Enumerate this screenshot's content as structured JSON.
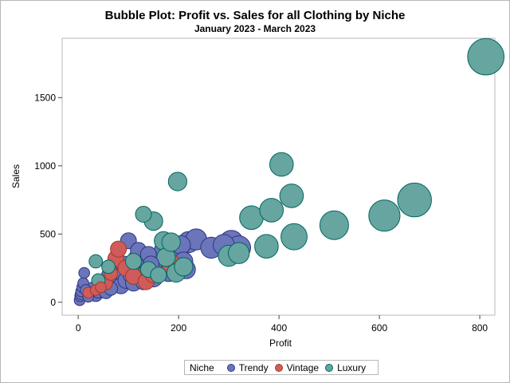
{
  "chart_data": {
    "type": "scatter",
    "title": "Bubble Plot: Profit vs. Sales for all Clothing by Niche",
    "subtitle": "January 2023 - March 2023",
    "xlabel": "Profit",
    "ylabel": "Sales",
    "xlim": [
      -32,
      830
    ],
    "ylim": [
      -95,
      1935
    ],
    "xticks": [
      0,
      200,
      400,
      600,
      800
    ],
    "yticks": [
      0,
      500,
      1000,
      1500
    ],
    "grid": false,
    "legend": {
      "title": "Niche",
      "position": "bottom"
    },
    "series": [
      {
        "name": "Trendy",
        "color": "#6b75b9",
        "edge": "#2d3584",
        "points": [
          {
            "x": 3,
            "y": 15,
            "size": 3
          },
          {
            "x": 4,
            "y": 45,
            "size": 3
          },
          {
            "x": 5,
            "y": 60,
            "size": 3
          },
          {
            "x": 6,
            "y": 80,
            "size": 3
          },
          {
            "x": 8,
            "y": 110,
            "size": 3
          },
          {
            "x": 10,
            "y": 140,
            "size": 3
          },
          {
            "x": 12,
            "y": 215,
            "size": 3
          },
          {
            "x": 15,
            "y": 90,
            "size": 3
          },
          {
            "x": 20,
            "y": 40,
            "size": 3
          },
          {
            "x": 25,
            "y": 60,
            "size": 4
          },
          {
            "x": 30,
            "y": 100,
            "size": 4
          },
          {
            "x": 35,
            "y": 55,
            "size": 4
          },
          {
            "x": 40,
            "y": 80,
            "size": 4
          },
          {
            "x": 45,
            "y": 120,
            "size": 4
          },
          {
            "x": 50,
            "y": 150,
            "size": 4
          },
          {
            "x": 55,
            "y": 75,
            "size": 4
          },
          {
            "x": 60,
            "y": 200,
            "size": 4
          },
          {
            "x": 65,
            "y": 100,
            "size": 4
          },
          {
            "x": 70,
            "y": 130,
            "size": 5
          },
          {
            "x": 75,
            "y": 170,
            "size": 5
          },
          {
            "x": 80,
            "y": 230,
            "size": 5
          },
          {
            "x": 85,
            "y": 120,
            "size": 5
          },
          {
            "x": 90,
            "y": 280,
            "size": 5
          },
          {
            "x": 95,
            "y": 160,
            "size": 5
          },
          {
            "x": 100,
            "y": 450,
            "size": 5
          },
          {
            "x": 105,
            "y": 200,
            "size": 5
          },
          {
            "x": 110,
            "y": 140,
            "size": 5
          },
          {
            "x": 115,
            "y": 320,
            "size": 5
          },
          {
            "x": 120,
            "y": 380,
            "size": 5
          },
          {
            "x": 125,
            "y": 250,
            "size": 5
          },
          {
            "x": 130,
            "y": 150,
            "size": 5
          },
          {
            "x": 135,
            "y": 220,
            "size": 5
          },
          {
            "x": 140,
            "y": 350,
            "size": 5
          },
          {
            "x": 145,
            "y": 280,
            "size": 5
          },
          {
            "x": 150,
            "y": 180,
            "size": 6
          },
          {
            "x": 160,
            "y": 250,
            "size": 6
          },
          {
            "x": 170,
            "y": 380,
            "size": 6
          },
          {
            "x": 180,
            "y": 220,
            "size": 6
          },
          {
            "x": 190,
            "y": 300,
            "size": 6
          },
          {
            "x": 200,
            "y": 380,
            "size": 6
          },
          {
            "x": 205,
            "y": 420,
            "size": 6
          },
          {
            "x": 210,
            "y": 300,
            "size": 6
          },
          {
            "x": 215,
            "y": 240,
            "size": 6
          },
          {
            "x": 220,
            "y": 440,
            "size": 7
          },
          {
            "x": 235,
            "y": 460,
            "size": 7
          },
          {
            "x": 265,
            "y": 400,
            "size": 7
          },
          {
            "x": 290,
            "y": 420,
            "size": 7
          },
          {
            "x": 305,
            "y": 440,
            "size": 8
          },
          {
            "x": 320,
            "y": 400,
            "size": 8
          }
        ]
      },
      {
        "name": "Vintage",
        "color": "#d05b5b",
        "edge": "#a23a23",
        "points": [
          {
            "x": 20,
            "y": 70,
            "size": 3
          },
          {
            "x": 35,
            "y": 90,
            "size": 3
          },
          {
            "x": 45,
            "y": 110,
            "size": 3
          },
          {
            "x": 55,
            "y": 140,
            "size": 4
          },
          {
            "x": 65,
            "y": 210,
            "size": 4
          },
          {
            "x": 75,
            "y": 320,
            "size": 5
          },
          {
            "x": 80,
            "y": 390,
            "size": 5
          },
          {
            "x": 95,
            "y": 250,
            "size": 5
          },
          {
            "x": 110,
            "y": 190,
            "size": 5
          },
          {
            "x": 135,
            "y": 150,
            "size": 5
          },
          {
            "x": 150,
            "y": 200,
            "size": 5
          },
          {
            "x": 185,
            "y": 280,
            "size": 6
          }
        ]
      },
      {
        "name": "Luxury",
        "color": "#66a5a0",
        "edge": "#01665e",
        "points": [
          {
            "x": 35,
            "y": 300,
            "size": 4
          },
          {
            "x": 40,
            "y": 160,
            "size": 4
          },
          {
            "x": 60,
            "y": 260,
            "size": 4
          },
          {
            "x": 110,
            "y": 300,
            "size": 5
          },
          {
            "x": 130,
            "y": 645,
            "size": 5
          },
          {
            "x": 140,
            "y": 240,
            "size": 5
          },
          {
            "x": 150,
            "y": 595,
            "size": 6
          },
          {
            "x": 160,
            "y": 200,
            "size": 5
          },
          {
            "x": 170,
            "y": 450,
            "size": 6
          },
          {
            "x": 175,
            "y": 330,
            "size": 6
          },
          {
            "x": 185,
            "y": 440,
            "size": 6
          },
          {
            "x": 195,
            "y": 215,
            "size": 6
          },
          {
            "x": 198,
            "y": 885,
            "size": 6
          },
          {
            "x": 210,
            "y": 260,
            "size": 6
          },
          {
            "x": 300,
            "y": 340,
            "size": 7
          },
          {
            "x": 320,
            "y": 360,
            "size": 7
          },
          {
            "x": 345,
            "y": 620,
            "size": 8
          },
          {
            "x": 375,
            "y": 410,
            "size": 8
          },
          {
            "x": 385,
            "y": 675,
            "size": 8
          },
          {
            "x": 405,
            "y": 1010,
            "size": 8
          },
          {
            "x": 425,
            "y": 780,
            "size": 8
          },
          {
            "x": 430,
            "y": 480,
            "size": 9
          },
          {
            "x": 510,
            "y": 565,
            "size": 10
          },
          {
            "x": 610,
            "y": 635,
            "size": 11
          },
          {
            "x": 670,
            "y": 750,
            "size": 12
          },
          {
            "x": 812,
            "y": 1800,
            "size": 13
          }
        ]
      }
    ]
  }
}
